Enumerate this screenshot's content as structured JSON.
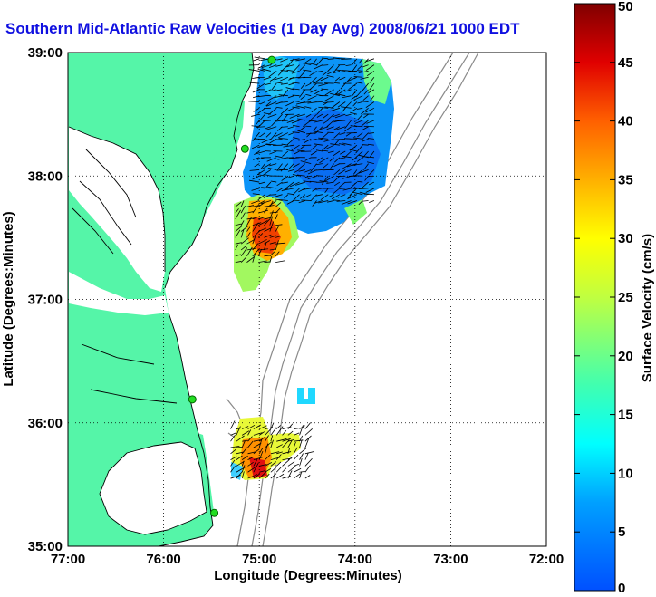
{
  "chart_data": {
    "type": "heatmap",
    "title": "Southern Mid-Atlantic Raw Velocities (1 Day Avg) 2008/06/21 1000 EDT",
    "xlabel": "Longitude (Degrees:Minutes)",
    "ylabel": "Latitude (Degrees:Minutes)",
    "colorbar_label": "Surface Velocity (cm/s)",
    "xlim": [
      -77,
      -72
    ],
    "ylim": [
      35,
      39
    ],
    "x_ticks": [
      {
        "value": -77,
        "label": "77:00"
      },
      {
        "value": -76,
        "label": "76:00"
      },
      {
        "value": -75,
        "label": "75:00"
      },
      {
        "value": -74,
        "label": "74:00"
      },
      {
        "value": -73,
        "label": "73:00"
      },
      {
        "value": -72,
        "label": "72:00"
      }
    ],
    "y_ticks": [
      {
        "value": 35,
        "label": "35:00"
      },
      {
        "value": 36,
        "label": "36:00"
      },
      {
        "value": 37,
        "label": "37:00"
      },
      {
        "value": 38,
        "label": "38:00"
      },
      {
        "value": 39,
        "label": "39:00"
      }
    ],
    "colorbar_range": [
      0,
      50
    ],
    "colorbar_ticks": [
      0,
      5,
      10,
      15,
      20,
      25,
      30,
      35,
      40,
      45,
      50
    ],
    "grid": "dotted",
    "colormap": "jet",
    "land_color": "#55f5a8",
    "stations": [
      {
        "lon": -74.87,
        "lat": 38.94
      },
      {
        "lon": -75.15,
        "lat": 38.22
      },
      {
        "lon": -75.7,
        "lat": 36.19
      },
      {
        "lon": -75.47,
        "lat": 35.27
      }
    ],
    "velocity_regions": [
      {
        "name": "north",
        "lon": [
          -75.0,
          -73.75
        ],
        "lat": [
          37.8,
          38.95
        ],
        "speed": 7
      },
      {
        "name": "north-southwest",
        "lon": [
          -75.25,
          -74.8
        ],
        "lat": [
          37.3,
          37.75
        ],
        "speed": 30
      },
      {
        "name": "south",
        "lon": [
          -75.3,
          -74.5
        ],
        "lat": [
          35.55,
          35.95
        ],
        "speed": 30
      }
    ]
  }
}
